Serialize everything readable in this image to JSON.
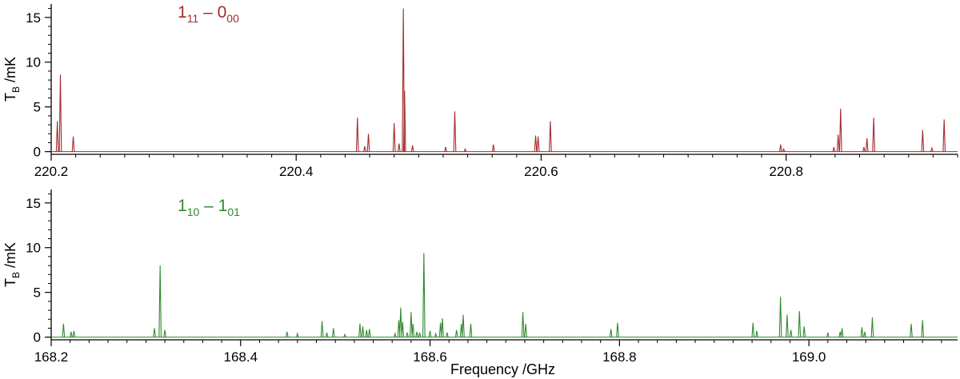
{
  "chart_data": [
    {
      "type": "line",
      "panel": "top",
      "annotation": {
        "main": "1",
        "sub1": "11",
        "dash": " – ",
        "main2": "0",
        "sub2": "00"
      },
      "color": "#a52a2a",
      "ylabel": {
        "main": "T",
        "sub": "B",
        "rest": " /mK"
      },
      "xlabel": "",
      "xlim": [
        220.2,
        220.94
      ],
      "ylim": [
        -0.3,
        16.5
      ],
      "xticks": [
        220.2,
        220.4,
        220.6,
        220.8
      ],
      "xticklabels": [
        "220.2",
        "220.4",
        "220.6",
        "220.8"
      ],
      "yticks": [
        0,
        5,
        10,
        15
      ],
      "yticklabels": [
        "0",
        "5",
        "10",
        "15"
      ],
      "peaks": [
        [
          220.205,
          3.4
        ],
        [
          220.2075,
          8.6
        ],
        [
          220.218,
          1.7
        ],
        [
          220.45,
          3.8
        ],
        [
          220.456,
          0.6
        ],
        [
          220.459,
          2.0
        ],
        [
          220.48,
          3.2
        ],
        [
          220.484,
          0.9
        ],
        [
          220.4875,
          16.0
        ],
        [
          220.4885,
          6.8
        ],
        [
          220.495,
          0.7
        ],
        [
          220.522,
          0.5
        ],
        [
          220.5295,
          4.5
        ],
        [
          220.538,
          0.3
        ],
        [
          220.561,
          0.8
        ],
        [
          220.5955,
          1.8
        ],
        [
          220.5975,
          1.7
        ],
        [
          220.6075,
          3.4
        ],
        [
          220.7955,
          0.8
        ],
        [
          220.798,
          0.3
        ],
        [
          220.839,
          0.5
        ],
        [
          220.8425,
          1.9
        ],
        [
          220.8445,
          4.8
        ],
        [
          220.8635,
          0.5
        ],
        [
          220.866,
          1.5
        ],
        [
          220.8715,
          3.8
        ],
        [
          220.9115,
          2.4
        ],
        [
          220.919,
          0.4
        ],
        [
          220.929,
          3.6
        ]
      ]
    },
    {
      "type": "line",
      "panel": "bottom",
      "annotation": {
        "main": "1",
        "sub1": "10",
        "dash": " – ",
        "main2": "1",
        "sub2": "01"
      },
      "color": "#2e8b2e",
      "ylabel": {
        "main": "T",
        "sub": "B",
        "rest": " /mK"
      },
      "xlabel": "Frequency /GHz",
      "xlim": [
        168.2,
        169.157
      ],
      "ylim": [
        -0.3,
        16.5
      ],
      "xticks": [
        168.2,
        168.4,
        168.6,
        168.8,
        169.0
      ],
      "xticklabels": [
        "168.2",
        "168.4",
        "168.6",
        "168.8",
        "169.0"
      ],
      "yticks": [
        0,
        5,
        10,
        15
      ],
      "yticklabels": [
        "0",
        "5",
        "10",
        "15"
      ],
      "peaks": [
        [
          168.213,
          1.5
        ],
        [
          168.221,
          0.6
        ],
        [
          168.224,
          0.7
        ],
        [
          168.309,
          1.0
        ],
        [
          168.315,
          8.0
        ],
        [
          168.32,
          0.8
        ],
        [
          168.449,
          0.6
        ],
        [
          168.46,
          0.4
        ],
        [
          168.486,
          1.8
        ],
        [
          168.491,
          0.5
        ],
        [
          168.498,
          1.0
        ],
        [
          168.51,
          0.3
        ],
        [
          168.526,
          1.5
        ],
        [
          168.529,
          1.2
        ],
        [
          168.533,
          0.8
        ],
        [
          168.536,
          0.9
        ],
        [
          168.563,
          0.4
        ],
        [
          168.567,
          1.9
        ],
        [
          168.569,
          3.3
        ],
        [
          168.571,
          1.7
        ],
        [
          168.576,
          0.5
        ],
        [
          168.58,
          2.8
        ],
        [
          168.582,
          1.5
        ],
        [
          168.586,
          0.6
        ],
        [
          168.589,
          0.5
        ],
        [
          168.5935,
          9.4
        ],
        [
          168.6,
          0.7
        ],
        [
          168.606,
          0.4
        ],
        [
          168.611,
          1.6
        ],
        [
          168.613,
          2.1
        ],
        [
          168.618,
          0.5
        ],
        [
          168.628,
          0.8
        ],
        [
          168.633,
          1.5
        ],
        [
          168.635,
          2.5
        ],
        [
          168.643,
          1.5
        ],
        [
          168.698,
          2.8
        ],
        [
          168.701,
          1.5
        ],
        [
          168.791,
          0.9
        ],
        [
          168.798,
          1.6
        ],
        [
          168.941,
          1.6
        ],
        [
          168.945,
          0.7
        ],
        [
          168.97,
          4.5
        ],
        [
          168.977,
          2.5
        ],
        [
          168.981,
          0.8
        ],
        [
          168.99,
          2.9
        ],
        [
          168.995,
          1.2
        ],
        [
          169.02,
          0.5
        ],
        [
          169.033,
          0.6
        ],
        [
          169.035,
          1.0
        ],
        [
          169.056,
          1.1
        ],
        [
          169.059,
          0.6
        ],
        [
          169.067,
          2.2
        ],
        [
          169.108,
          1.5
        ],
        [
          169.12,
          1.9
        ]
      ]
    }
  ]
}
